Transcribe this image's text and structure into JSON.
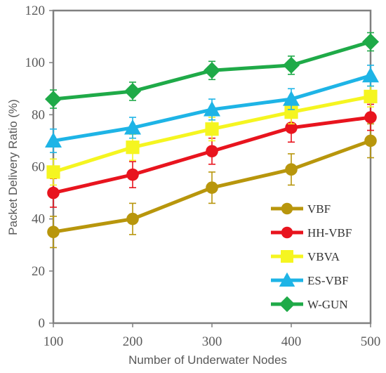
{
  "chart_data": {
    "type": "line",
    "xlabel": "Number of Underwater Nodes",
    "ylabel": "Packet Delivery Ratio (%)",
    "x": [
      100,
      200,
      300,
      400,
      500
    ],
    "xlim": [
      100,
      500
    ],
    "ylim": [
      0,
      120
    ],
    "yticks": [
      0,
      20,
      40,
      60,
      80,
      100,
      120
    ],
    "grid": false,
    "legend_position": "bottom-right",
    "series": [
      {
        "name": "VBF",
        "marker": "circle",
        "color": "#B8960C",
        "values": [
          35,
          40,
          52,
          59,
          70
        ],
        "errors": [
          6,
          6,
          6,
          6,
          6.5
        ]
      },
      {
        "name": "HH-VBF",
        "marker": "circle",
        "color": "#E8141E",
        "values": [
          50,
          57,
          66,
          75,
          79
        ],
        "errors": [
          5.5,
          5,
          5,
          5.5,
          5
        ]
      },
      {
        "name": "VBVA",
        "marker": "square",
        "color": "#F5F520",
        "values": [
          58,
          67.5,
          74.5,
          81,
          87
        ],
        "errors": [
          5,
          5,
          4.5,
          4.5,
          4
        ]
      },
      {
        "name": "ES-VBF",
        "marker": "triangle",
        "color": "#1EB4E6",
        "values": [
          70,
          75,
          82,
          86,
          95
        ],
        "errors": [
          4.5,
          4,
          4,
          4,
          4
        ]
      },
      {
        "name": "W-GUN",
        "marker": "diamond",
        "color": "#1FAA48",
        "values": [
          86,
          89,
          97,
          99,
          108
        ],
        "errors": [
          3.5,
          3.5,
          3.5,
          3.5,
          3.5
        ]
      }
    ]
  }
}
